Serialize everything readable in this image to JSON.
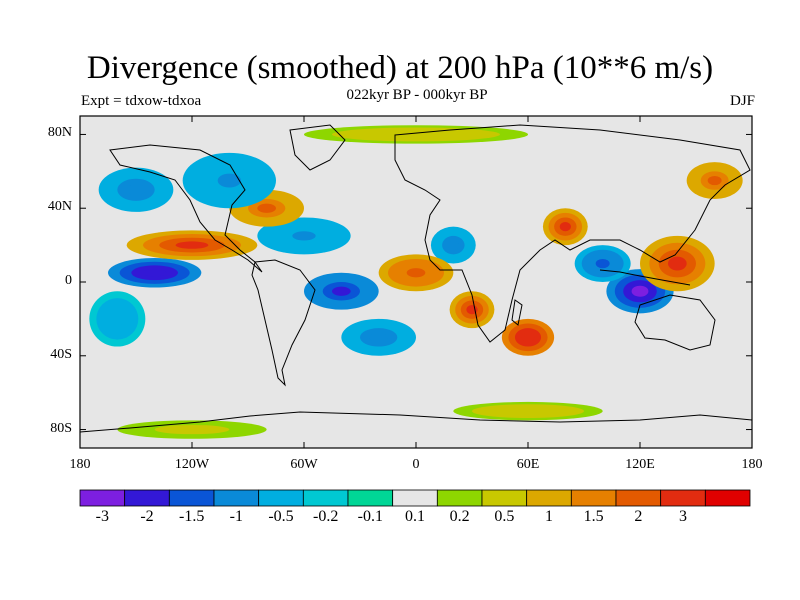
{
  "chart_data": {
    "type": "heatmap",
    "title": "Divergence (smoothed) at 200 hPa (10**6 m/s)",
    "subtitle": "022kyr BP - 000kyr BP",
    "left_string": "Expt = tdxow-tdxoa",
    "right_string": "DJF",
    "x_ticks": [
      "180",
      "120W",
      "60W",
      "0",
      "60E",
      "120E",
      "180"
    ],
    "y_ticks": [
      "80N",
      "40N",
      "0",
      "40S",
      "80S"
    ],
    "xlim": [
      -180,
      180
    ],
    "ylim": [
      -90,
      90
    ],
    "colorbar": {
      "levels": [
        "-3",
        "-2",
        "-1.5",
        "-1",
        "-0.5",
        "-0.2",
        "-0.1",
        "0.1",
        "0.2",
        "0.5",
        "1",
        "1.5",
        "2",
        "3"
      ],
      "colors": [
        "#7d1fe0",
        "#3318d6",
        "#0a55d6",
        "#0a8ad8",
        "#00aee0",
        "#00c8d2",
        "#00d696",
        "#e6e6e6",
        "#8ed600",
        "#c8c800",
        "#dca800",
        "#e68000",
        "#e35a00",
        "#e22c10",
        "#e00000"
      ]
    },
    "features": [
      {
        "lon": 120,
        "lat": -5,
        "value": -3.2,
        "rx": 18,
        "ry": 12
      },
      {
        "lon": -140,
        "lat": 5,
        "value": -2.5,
        "rx": 25,
        "ry": 8
      },
      {
        "lon": -40,
        "lat": -5,
        "value": -2.4,
        "rx": 20,
        "ry": 10
      },
      {
        "lon": 20,
        "lat": 20,
        "value": -1.5,
        "rx": 12,
        "ry": 10
      },
      {
        "lon": -60,
        "lat": 25,
        "value": -1.2,
        "rx": 25,
        "ry": 10
      },
      {
        "lon": 60,
        "lat": -30,
        "value": 2.5,
        "rx": 14,
        "ry": 10
      },
      {
        "lon": 30,
        "lat": -15,
        "value": 2.0,
        "rx": 12,
        "ry": 10
      },
      {
        "lon": 140,
        "lat": 10,
        "value": 2.0,
        "rx": 20,
        "ry": 15
      },
      {
        "lon": 80,
        "lat": 30,
        "value": 2.2,
        "rx": 12,
        "ry": 10
      },
      {
        "lon": -120,
        "lat": 20,
        "value": 2.0,
        "rx": 35,
        "ry": 8
      },
      {
        "lon": -80,
        "lat": 40,
        "value": 1.5,
        "rx": 20,
        "ry": 10
      },
      {
        "lon": 0,
        "lat": 5,
        "value": 1.8,
        "rx": 20,
        "ry": 10
      },
      {
        "lon": 160,
        "lat": 55,
        "value": 1.5,
        "rx": 15,
        "ry": 10
      },
      {
        "lon": -150,
        "lat": 50,
        "value": -1.5,
        "rx": 20,
        "ry": 12
      },
      {
        "lon": -100,
        "lat": 55,
        "value": -1.2,
        "rx": 25,
        "ry": 15
      },
      {
        "lon": 100,
        "lat": 10,
        "value": -1.8,
        "rx": 15,
        "ry": 10
      },
      {
        "lon": -20,
        "lat": -30,
        "value": -1.5,
        "rx": 20,
        "ry": 10
      },
      {
        "lon": -160,
        "lat": -20,
        "value": -1.0,
        "rx": 15,
        "ry": 15
      },
      {
        "lon": 0,
        "lat": 80,
        "value": 0.4,
        "rx": 60,
        "ry": 5
      },
      {
        "lon": 60,
        "lat": -70,
        "value": 0.4,
        "rx": 40,
        "ry": 5
      },
      {
        "lon": -120,
        "lat": -80,
        "value": 0.3,
        "rx": 40,
        "ry": 5
      }
    ]
  }
}
